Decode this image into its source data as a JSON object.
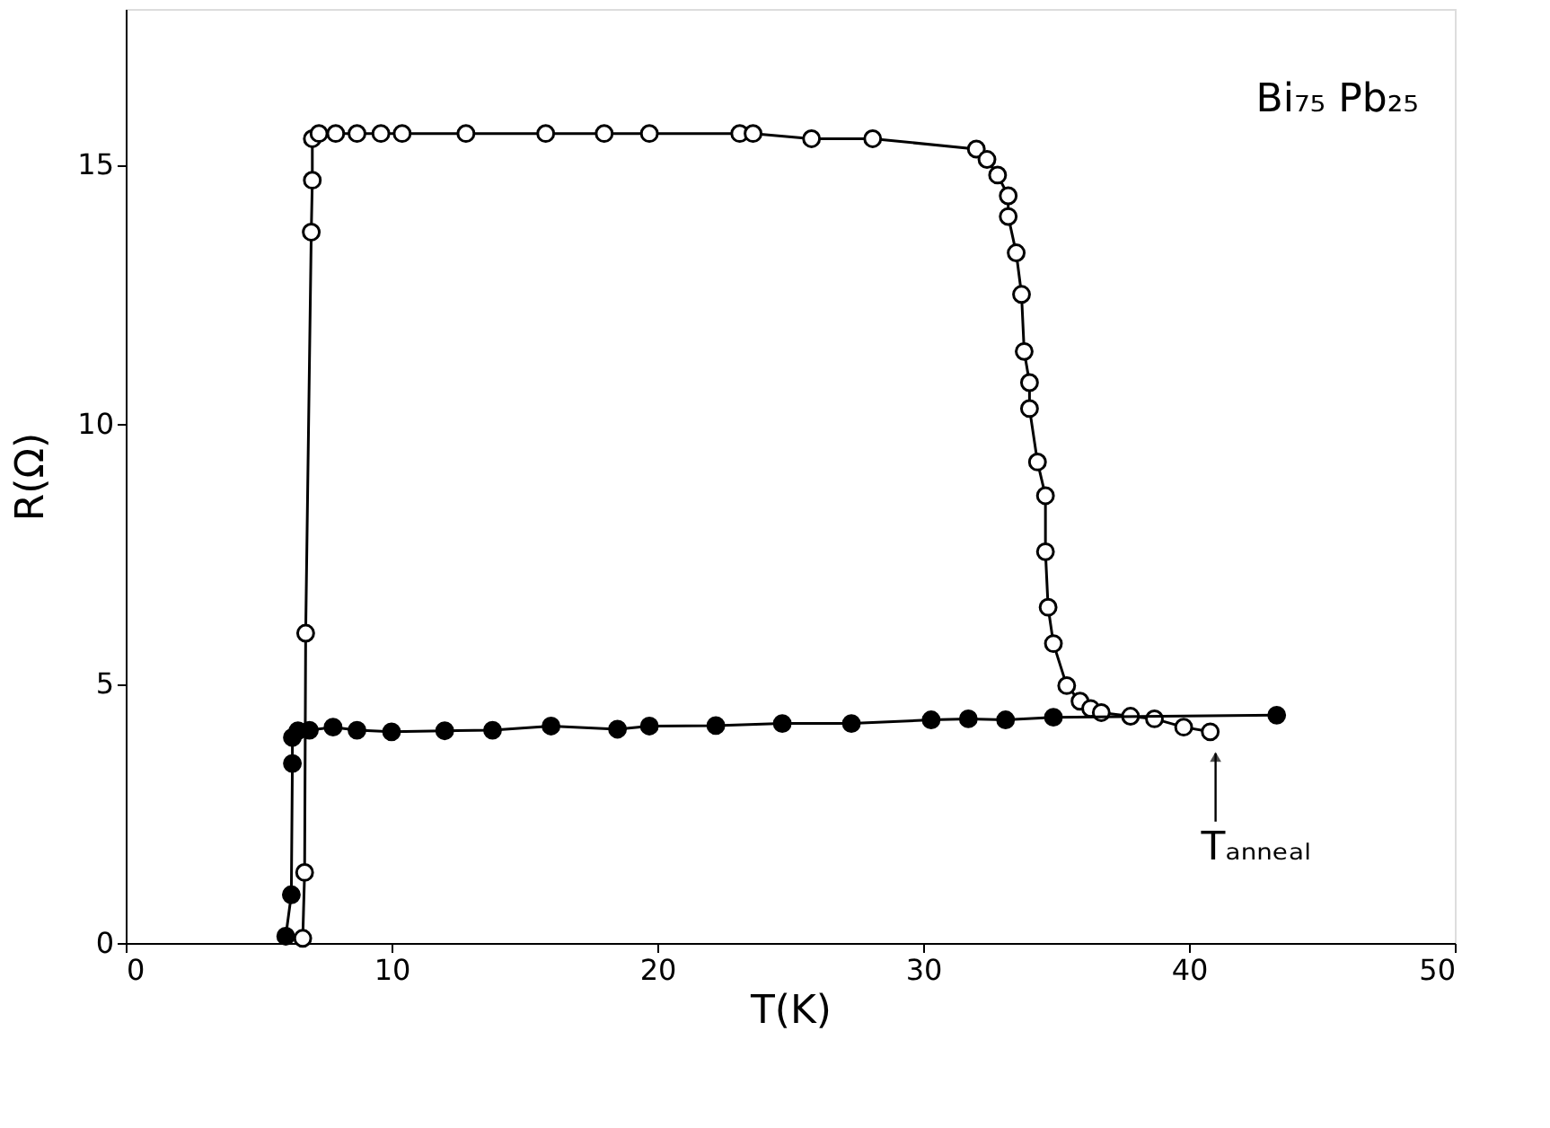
{
  "chart_data": {
    "type": "line",
    "title": "Bi₇₅ Pb₂₅",
    "xlabel": "T(K)",
    "ylabel": "R(Ω)",
    "xlim": [
      0,
      50
    ],
    "ylim": [
      0,
      18
    ],
    "xticks": [
      0,
      10,
      20,
      30,
      40,
      50
    ],
    "yticks": [
      0,
      5,
      10,
      15
    ],
    "grid": false,
    "marker": "circle",
    "line_style": "solid",
    "annotations": [
      {
        "text": "Tₐₙₙₑₐₗ",
        "x": 41,
        "y": 4.07
      }
    ],
    "series": [
      {
        "color": "#000000",
        "x": [
          6.66,
          6.73,
          6.77,
          6.98,
          7.02,
          7.02,
          7.27,
          7.9,
          8.7,
          9.6,
          10.4,
          12.8,
          15.8,
          18.0,
          19.7,
          23.1,
          23.6,
          25.8,
          28.1,
          32.0,
          32.4,
          32.8,
          33.2,
          33.2,
          33.5,
          33.7,
          33.8,
          34.0,
          34.0,
          34.3,
          34.6,
          34.6,
          34.7,
          34.9,
          35.4,
          35.9,
          36.3,
          36.7,
          37.8,
          38.7,
          39.8,
          40.8
        ],
        "values": [
          0.09,
          1.36,
          5.97,
          13.7,
          14.7,
          15.5,
          15.6,
          15.6,
          15.6,
          15.6,
          15.6,
          15.6,
          15.6,
          15.6,
          15.6,
          15.6,
          15.6,
          15.5,
          15.5,
          15.3,
          15.1,
          14.8,
          14.4,
          14.0,
          13.3,
          12.5,
          11.4,
          10.8,
          10.3,
          9.27,
          8.62,
          7.54,
          6.47,
          5.77,
          4.96,
          4.66,
          4.52,
          4.44,
          4.37,
          4.32,
          4.16,
          4.07
        ]
      },
      {
        "color": "#000000",
        "x": [
          6.02,
          6.23,
          6.27,
          6.27,
          6.48,
          6.91,
          7.8,
          8.7,
          10.0,
          12.0,
          13.8,
          16.0,
          18.5,
          19.7,
          22.2,
          24.7,
          27.3,
          30.3,
          31.7,
          33.1,
          34.9,
          43.3
        ],
        "values": [
          0.13,
          0.93,
          3.46,
          3.96,
          4.09,
          4.1,
          4.16,
          4.1,
          4.07,
          4.09,
          4.1,
          4.18,
          4.12,
          4.18,
          4.19,
          4.23,
          4.23,
          4.3,
          4.32,
          4.3,
          4.35,
          4.39
        ]
      }
    ]
  }
}
